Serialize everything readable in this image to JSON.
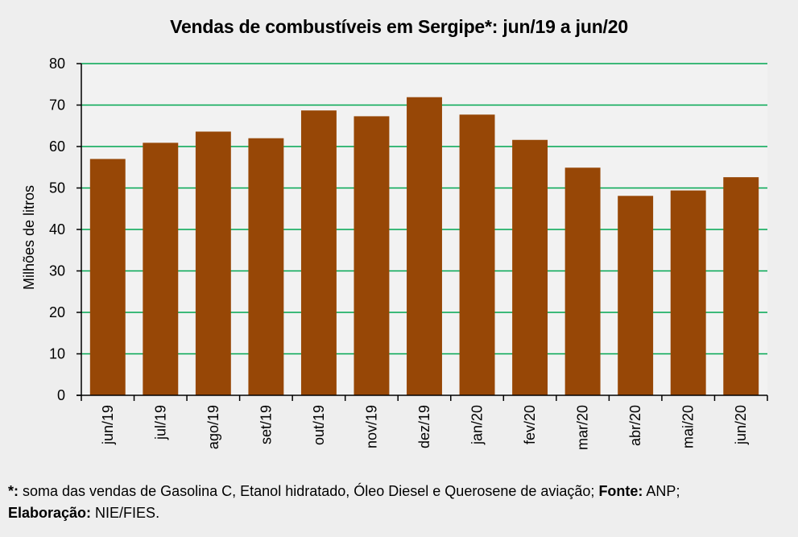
{
  "chart_data": {
    "type": "bar",
    "title": "Vendas de combustíveis em Sergipe*: jun/19 a jun/20",
    "xlabel": "",
    "ylabel": "Milhões de litros",
    "ylim": [
      0,
      80
    ],
    "yticks": [
      0,
      10,
      20,
      30,
      40,
      50,
      60,
      70,
      80
    ],
    "grid": true,
    "categories": [
      "jun/19",
      "jul/19",
      "ago/19",
      "set/19",
      "out/19",
      "nov/19",
      "dez/19",
      "jan/20",
      "fev/20",
      "mar/20",
      "abr/20",
      "mai/20",
      "jun/20"
    ],
    "values": [
      57.0,
      60.9,
      63.6,
      62.0,
      68.7,
      67.3,
      71.9,
      67.7,
      61.6,
      54.9,
      48.1,
      49.4,
      52.6
    ],
    "colors": {
      "bar": "#974706",
      "grid": "#00a651",
      "plot_bg": "#f2f2f2",
      "page_bg": "#eeeeee"
    }
  },
  "footnote": {
    "star_label": "*:",
    "description": " soma das vendas de Gasolina C, Etanol hidratado, Óleo Diesel e Querosene de aviação; ",
    "source_label": "Fonte:",
    "source_value": " ANP;",
    "elaboration_label": "Elaboração:",
    "elaboration_value": " NIE/FIES."
  }
}
